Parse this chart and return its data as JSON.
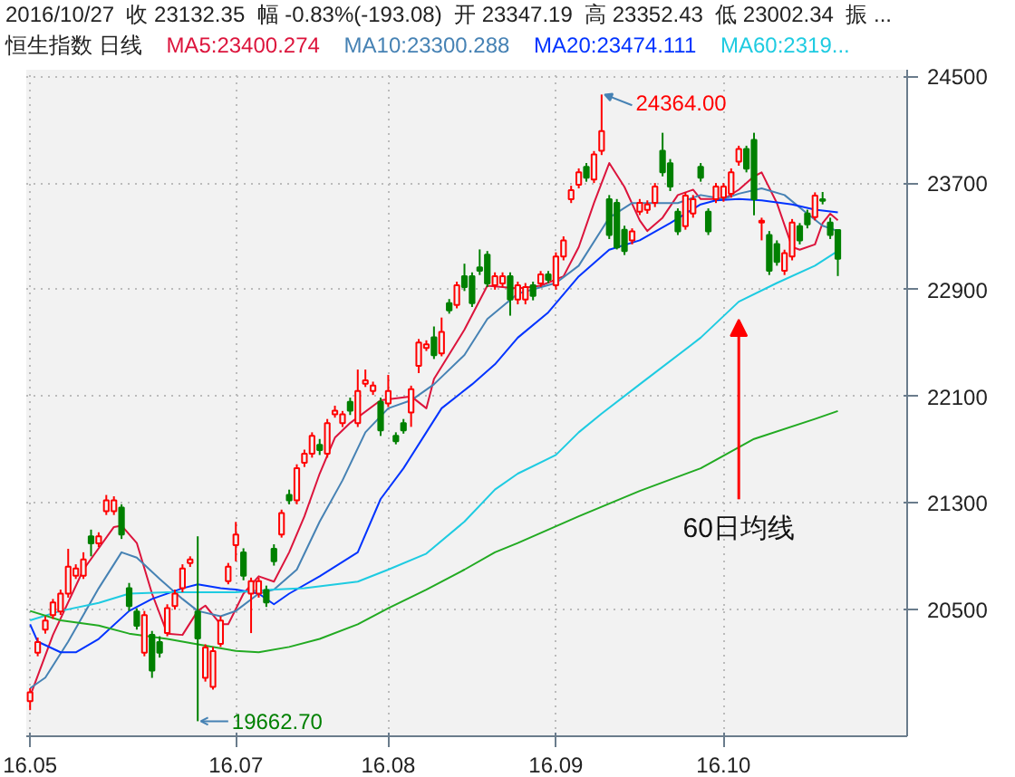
{
  "chart_data": {
    "type": "candlestick",
    "title": "2016/10/27  收 23132.35  幅 -0.83%(-193.08)  开 23347.19  高 23352.43  低 23002.34  振 ...",
    "subtitle": "恒生指数 日线",
    "categories": [
      "16.05",
      null,
      null,
      null,
      null,
      null,
      null,
      null,
      null,
      null,
      null,
      null,
      null,
      null,
      null,
      null,
      null,
      null,
      null,
      null,
      null,
      null,
      null,
      null,
      null,
      null,
      null,
      "16.07",
      null,
      null,
      null,
      null,
      null,
      null,
      null,
      null,
      null,
      null,
      null,
      null,
      null,
      null,
      null,
      null,
      null,
      null,
      null,
      "16.08",
      null,
      null,
      null,
      null,
      null,
      null,
      null,
      null,
      null,
      null,
      null,
      null,
      null,
      null,
      null,
      null,
      null,
      null,
      null,
      null,
      null,
      "16.09",
      null,
      null,
      null,
      null,
      null,
      null,
      null,
      null,
      null,
      null,
      null,
      null,
      null,
      null,
      null,
      null,
      null,
      null,
      null,
      null,
      null,
      "16.10",
      null,
      null,
      null,
      null,
      null,
      null,
      null,
      null,
      null,
      null,
      null,
      null,
      null,
      null,
      null
    ],
    "ohlc": [
      [
        19813,
        19910,
        19746,
        19880
      ],
      [
        20176,
        20290,
        20150,
        20257
      ],
      [
        20350,
        20450,
        20320,
        20418
      ],
      [
        20458,
        20580,
        20430,
        20553
      ],
      [
        20485,
        20650,
        20460,
        20620
      ],
      [
        20620,
        20956,
        20590,
        20822
      ],
      [
        20754,
        20840,
        20730,
        20808
      ],
      [
        20754,
        20930,
        20730,
        20876
      ],
      [
        21050,
        21100,
        20900,
        20997
      ],
      [
        20997,
        21080,
        20970,
        21050
      ],
      [
        21239,
        21360,
        21210,
        21319
      ],
      [
        21239,
        21350,
        21210,
        21319
      ],
      [
        21265,
        21290,
        21030,
        21064
      ],
      [
        20660,
        20700,
        20490,
        20526
      ],
      [
        20485,
        20510,
        20350,
        20378
      ],
      [
        20176,
        20490,
        20150,
        20458
      ],
      [
        20311,
        20340,
        19988,
        20042
      ],
      [
        20257,
        20300,
        20140,
        20176
      ],
      [
        20324,
        20540,
        20300,
        20512
      ],
      [
        20526,
        20650,
        20500,
        20620
      ],
      [
        20660,
        20840,
        20630,
        20808
      ],
      [
        20849,
        20900,
        20820,
        20876
      ],
      [
        20485,
        21050,
        19662.7,
        20284
      ],
      [
        19988,
        20240,
        19960,
        20216
      ],
      [
        19921,
        20220,
        19900,
        20189
      ],
      [
        20243,
        20450,
        20220,
        20418
      ],
      [
        20714,
        20850,
        20690,
        20822
      ],
      [
        20983,
        21158,
        20862,
        21064
      ],
      [
        20929,
        20960,
        20720,
        20754
      ],
      [
        20620,
        20740,
        20324,
        20714
      ],
      [
        20620,
        20740,
        20590,
        20714
      ],
      [
        20647,
        20680,
        20520,
        20553
      ],
      [
        20956,
        20990,
        20830,
        20862
      ],
      [
        21064,
        21250,
        21040,
        21225
      ],
      [
        21360,
        21400,
        21290,
        21319
      ],
      [
        21319,
        21590,
        21290,
        21561
      ],
      [
        21602,
        21700,
        21570,
        21669
      ],
      [
        21669,
        21830,
        21640,
        21803
      ],
      [
        21736,
        21780,
        21660,
        21696
      ],
      [
        21669,
        21930,
        21640,
        21898
      ],
      [
        21965,
        22030,
        21940,
        21992
      ],
      [
        21898,
        21990,
        21870,
        21965
      ],
      [
        22059,
        22090,
        21960,
        21992
      ],
      [
        21898,
        22301,
        21870,
        22140
      ],
      [
        22194,
        22301,
        22170,
        22220
      ],
      [
        22140,
        22210,
        22110,
        22180
      ],
      [
        22059,
        22090,
        21803,
        21844
      ],
      [
        22046,
        22261,
        22020,
        22140
      ],
      [
        21803,
        21830,
        21740,
        21763
      ],
      [
        21898,
        21930,
        21820,
        21844
      ],
      [
        21978,
        22180,
        21871,
        22153
      ],
      [
        22328,
        22530,
        22274,
        22503
      ],
      [
        22463,
        22520,
        22440,
        22490
      ],
      [
        22543,
        22624,
        22380,
        22409
      ],
      [
        22422,
        22691,
        22400,
        22584
      ],
      [
        22799,
        22830,
        22720,
        22745
      ],
      [
        22785,
        22960,
        22760,
        22933
      ],
      [
        23001,
        23095,
        22890,
        22920
      ],
      [
        23001,
        23030,
        22770,
        22799
      ],
      [
        23068,
        23202,
        23010,
        23041
      ],
      [
        23162,
        23190,
        22920,
        22947
      ],
      [
        22933,
        23030,
        22900,
        23001
      ],
      [
        22947,
        23030,
        22920,
        23001
      ],
      [
        23001,
        23030,
        22705,
        22826
      ],
      [
        22826,
        22960,
        22790,
        22933
      ],
      [
        22826,
        22950,
        22790,
        22920
      ],
      [
        22933,
        22960,
        22820,
        22853
      ],
      [
        22947,
        23040,
        22920,
        23014
      ],
      [
        23014,
        23040,
        22950,
        22974
      ],
      [
        22933,
        23180,
        22900,
        23149
      ],
      [
        23149,
        23300,
        23120,
        23270
      ],
      [
        23579,
        23680,
        23550,
        23646
      ],
      [
        23687,
        23810,
        23660,
        23781
      ],
      [
        23821,
        23850,
        23710,
        23740
      ],
      [
        23727,
        23940,
        23700,
        23915
      ],
      [
        23942,
        24364,
        23910,
        24090
      ],
      [
        23579,
        23610,
        23280,
        23310
      ],
      [
        23552,
        23580,
        23202,
        23216
      ],
      [
        23350,
        23380,
        23160,
        23189
      ],
      [
        23270,
        23360,
        23240,
        23337
      ],
      [
        23485,
        23580,
        23460,
        23552
      ],
      [
        23498,
        23570,
        23470,
        23539
      ],
      [
        23552,
        23700,
        23520,
        23673
      ],
      [
        23942,
        24077,
        23750,
        23781
      ],
      [
        23848,
        23880,
        23640,
        23673
      ],
      [
        23485,
        23510,
        23310,
        23337
      ],
      [
        23377,
        23630,
        23350,
        23606
      ],
      [
        23471,
        23610,
        23440,
        23579
      ],
      [
        23821,
        23850,
        23710,
        23740
      ],
      [
        23485,
        23510,
        23310,
        23337
      ],
      [
        23579,
        23700,
        23550,
        23673
      ],
      [
        23592,
        23700,
        23560,
        23673
      ],
      [
        23619,
        23810,
        23590,
        23781
      ],
      [
        23861,
        23980,
        23830,
        23956
      ],
      [
        23956,
        23980,
        23780,
        23808
      ],
      [
        24023,
        24077,
        23458,
        23579
      ],
      [
        23404,
        23440,
        23270,
        23417
      ],
      [
        23310,
        23340,
        23010,
        23041
      ],
      [
        23243,
        23270,
        23080,
        23108
      ],
      [
        23041,
        23200,
        23010,
        23175
      ],
      [
        23149,
        23430,
        23120,
        23404
      ],
      [
        23377,
        23400,
        23240,
        23270
      ],
      [
        23471,
        23500,
        23360,
        23390
      ],
      [
        23444,
        23630,
        23420,
        23606
      ],
      [
        23579,
        23633,
        23540,
        23566
      ],
      [
        23404,
        23440,
        23280,
        23310
      ],
      [
        23347.19,
        23352.43,
        23002.34,
        23132.35
      ]
    ],
    "series": [
      {
        "name": "MA5:23400.274",
        "type": "line",
        "color": "#dc143c",
        "values": [
          19850,
          null,
          null,
          20310,
          null,
          null,
          null,
          20800,
          null,
          null,
          null,
          21120,
          21130,
          null,
          21000,
          null,
          20620,
          null,
          20320,
          null,
          20310,
          null,
          20490,
          20530,
          null,
          20390,
          20390,
          null,
          20620,
          null,
          20750,
          null,
          20710,
          null,
          20930,
          null,
          21200,
          null,
          21520,
          null,
          21790,
          null,
          21900,
          null,
          null,
          null,
          22070,
          null,
          null,
          null,
          22100,
          null,
          22010,
          22230,
          null,
          null,
          null,
          22600,
          null,
          null,
          22930,
          null,
          null,
          null,
          22910,
          null,
          null,
          22930,
          null,
          null,
          23000,
          null,
          23220,
          null,
          23550,
          null,
          23850,
          null,
          23670,
          null,
          23420,
          23340,
          null,
          23440,
          null,
          23610,
          null,
          23650,
          23580,
          null,
          null,
          23580,
          null,
          23650,
          null,
          23750,
          23780,
          null,
          23550,
          null,
          23220,
          23200,
          null,
          23240,
          23400,
          23470,
          23420
        ]
      },
      {
        "name": "MA10:23300.288",
        "type": "line",
        "color": "#4682b4",
        "values": [
          19910,
          null,
          19990,
          null,
          null,
          20260,
          null,
          null,
          null,
          20660,
          null,
          null,
          20930,
          null,
          20890,
          null,
          null,
          20730,
          null,
          null,
          20580,
          null,
          20490,
          null,
          null,
          20450,
          null,
          20490,
          null,
          null,
          20620,
          null,
          20650,
          null,
          null,
          20800,
          null,
          null,
          21160,
          null,
          null,
          21470,
          null,
          null,
          21830,
          null,
          null,
          22010,
          null,
          null,
          22070,
          null,
          null,
          22190,
          null,
          null,
          null,
          22410,
          null,
          null,
          22680,
          null,
          null,
          null,
          22870,
          null,
          null,
          null,
          null,
          22950,
          null,
          null,
          23080,
          null,
          null,
          null,
          23440,
          null,
          null,
          23550,
          null,
          23550,
          null,
          null,
          null,
          23550,
          null,
          null,
          23610,
          null,
          null,
          23580,
          null,
          23620,
          null,
          null,
          23660,
          null,
          null,
          23610,
          null,
          null,
          23470,
          null,
          23380,
          null,
          23340
        ]
      },
      {
        "name": "MA20:23474.111",
        "type": "line",
        "color": "#0033ff",
        "values": [
          20390,
          20260,
          null,
          null,
          20180,
          null,
          20180,
          null,
          null,
          20280,
          null,
          null,
          null,
          20490,
          null,
          null,
          20580,
          null,
          null,
          null,
          20660,
          null,
          20690,
          null,
          null,
          20660,
          null,
          20650,
          null,
          null,
          20620,
          null,
          20540,
          null,
          20620,
          null,
          null,
          null,
          20750,
          null,
          null,
          null,
          null,
          20930,
          null,
          null,
          21330,
          null,
          null,
          21560,
          null,
          null,
          21830,
          null,
          22010,
          null,
          null,
          null,
          22190,
          null,
          null,
          22340,
          null,
          null,
          22540,
          null,
          null,
          null,
          22730,
          null,
          null,
          null,
          23000,
          null,
          null,
          null,
          23200,
          null,
          null,
          null,
          23270,
          null,
          null,
          null,
          23400,
          null,
          null,
          null,
          23540,
          null,
          23570,
          null,
          null,
          23580,
          null,
          null,
          23570,
          null,
          null,
          null,
          23540,
          null,
          null,
          23500,
          null,
          null,
          23480
        ]
      },
      {
        "name": "MA60:2319...",
        "type": "line",
        "color": "#1ecbe1",
        "values": [
          20420,
          null,
          null,
          null,
          20490,
          null,
          null,
          null,
          null,
          20550,
          null,
          null,
          null,
          20620,
          null,
          null,
          null,
          null,
          20630,
          null,
          null,
          null,
          20630,
          null,
          null,
          null,
          null,
          20630,
          null,
          null,
          null,
          null,
          20650,
          null,
          null,
          null,
          20660,
          null,
          null,
          null,
          null,
          null,
          null,
          20710,
          null,
          null,
          null,
          20800,
          null,
          null,
          null,
          null,
          20920,
          null,
          null,
          null,
          null,
          21160,
          null,
          null,
          null,
          21400,
          null,
          null,
          21520,
          null,
          null,
          null,
          null,
          21660,
          null,
          null,
          21830,
          null,
          null,
          21970,
          null,
          null,
          null,
          null,
          22190,
          null,
          null,
          null,
          null,
          null,
          null,
          null,
          22540,
          null,
          null,
          null,
          null,
          22810,
          null,
          null,
          null,
          null,
          22950,
          null,
          null,
          null,
          null,
          23080,
          null,
          null,
          23190
        ]
      },
      {
        "type": "line",
        "color": "#22aa22",
        "values": [
          20490,
          null,
          null,
          null,
          20420,
          null,
          null,
          null,
          null,
          20380,
          null,
          null,
          null,
          20320,
          null,
          null,
          null,
          null,
          20280,
          null,
          null,
          null,
          20240,
          null,
          null,
          null,
          null,
          20190,
          null,
          null,
          20180,
          null,
          null,
          null,
          20220,
          null,
          null,
          null,
          20280,
          null,
          null,
          null,
          null,
          20390,
          null,
          null,
          null,
          20510,
          null,
          null,
          null,
          null,
          20650,
          null,
          null,
          null,
          null,
          20800,
          null,
          null,
          null,
          20930,
          null,
          null,
          21000,
          null,
          null,
          null,
          null,
          null,
          null,
          null,
          21200,
          null,
          null,
          null,
          null,
          null,
          null,
          null,
          21390,
          null,
          null,
          null,
          null,
          null,
          null,
          null,
          21560,
          null,
          null,
          null,
          null,
          null,
          null,
          21780,
          null,
          null,
          null,
          null,
          null,
          null,
          null,
          21930,
          null,
          null,
          21990
        ]
      }
    ],
    "annotations": [
      "24364.00",
      "19662.70",
      "60日均线"
    ],
    "ylim": [
      19550,
      24550
    ],
    "yticks": [
      20500,
      21300,
      22100,
      22900,
      23700,
      24500
    ],
    "grid": true,
    "legend": "top"
  }
}
